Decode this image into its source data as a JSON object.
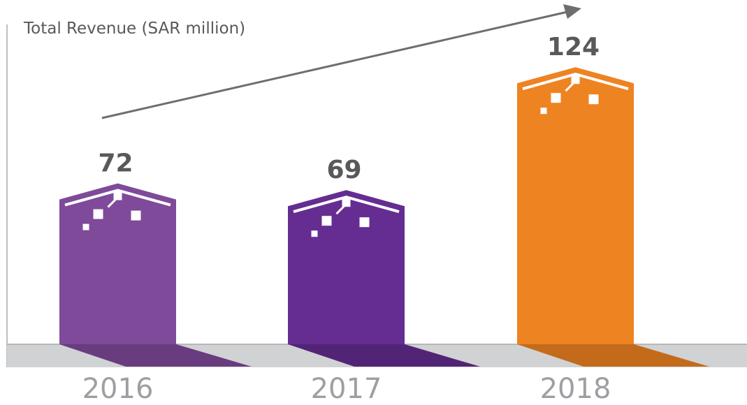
{
  "chart_data": {
    "type": "bar",
    "title": "Total Revenue (SAR million)",
    "categories": [
      "2016",
      "2017",
      "2018"
    ],
    "values": [
      72,
      69,
      124
    ],
    "colors": [
      "#7f4a9a",
      "#652d91",
      "#ee8322"
    ]
  }
}
